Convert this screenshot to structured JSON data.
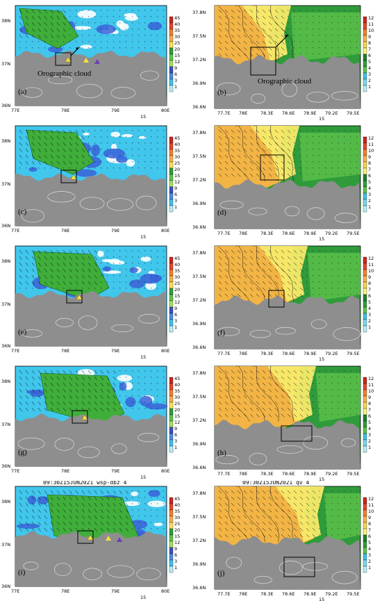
{
  "panels": [
    {
      "id": "a",
      "label": "(a)",
      "type": "wsp",
      "annotation": "Orographic cloud",
      "title": ""
    },
    {
      "id": "b",
      "label": "(b)",
      "type": "qv",
      "annotation": "Orographic cloud",
      "title": ""
    },
    {
      "id": "c",
      "label": "(c)",
      "type": "wsp",
      "annotation": "",
      "title": ""
    },
    {
      "id": "d",
      "label": "(d)",
      "type": "qv",
      "annotation": "",
      "title": ""
    },
    {
      "id": "e",
      "label": "(e)",
      "type": "wsp",
      "annotation": "",
      "title": ""
    },
    {
      "id": "f",
      "label": "(f)",
      "type": "qv",
      "annotation": "",
      "title": ""
    },
    {
      "id": "g",
      "label": "(g)",
      "type": "wsp",
      "annotation": "",
      "title": ""
    },
    {
      "id": "h",
      "label": "(h)",
      "type": "qv",
      "annotation": "",
      "title": ""
    },
    {
      "id": "i",
      "label": "(i)",
      "type": "wsp",
      "annotation": "",
      "title": "09:30Z15JUN2021 wsp-dbz 4"
    },
    {
      "id": "j",
      "label": "(j)",
      "type": "qv",
      "annotation": "",
      "title": "09:30Z15JUN2021 qv 4"
    }
  ],
  "wsp_axes": {
    "lat_labels": [
      "38N",
      "37N",
      "36N"
    ],
    "lon_labels": [
      "77E",
      "78E",
      "79E",
      "80E"
    ],
    "vector_ref": "15",
    "colorbar_labels": [
      "45",
      "40",
      "35",
      "30",
      "25",
      "20",
      "15",
      "12",
      "9",
      "6",
      "3",
      "1"
    ],
    "colorbar_colors": [
      "#c8261e",
      "#e2462c",
      "#f07f32",
      "#f4b04a",
      "#f9e05f",
      "#2f9b3b",
      "#5ec24b",
      "#a9dc62",
      "#3b4fc0",
      "#4f8ae0",
      "#3ec0ea",
      "#b8ecf4"
    ]
  },
  "qv_axes": {
    "lat_labels": [
      "37.8N",
      "37.5N",
      "37.2N",
      "36.9N",
      "36.6N"
    ],
    "lon_labels": [
      "77.7E",
      "78E",
      "78.3E",
      "78.6E",
      "78.9E",
      "79.2E",
      "79.5E"
    ],
    "vector_ref": "15",
    "colorbar_labels": [
      "12",
      "11",
      "10",
      "9",
      "8",
      "7",
      "6",
      "5",
      "4",
      "3",
      "2",
      "1"
    ],
    "colorbar_colors": [
      "#c8261e",
      "#e2462c",
      "#f07f32",
      "#f4b04a",
      "#f5d44e",
      "#f9f07a",
      "#1c7f2a",
      "#2f9b3b",
      "#5ec24b",
      "#3ec0ea",
      "#7ad6ee",
      "#b8ecf4"
    ]
  },
  "colors": {
    "terrain": "#8e8e8e",
    "wsp_sky": "#41c6ec",
    "wsp_green": "#3fae3a",
    "wsp_blue": "#3a62d8",
    "qv_orange": "#f1b445",
    "qv_yellow": "#f7ea6a",
    "qv_green": "#2f9b3b",
    "qv_light_green": "#5ec24b"
  }
}
